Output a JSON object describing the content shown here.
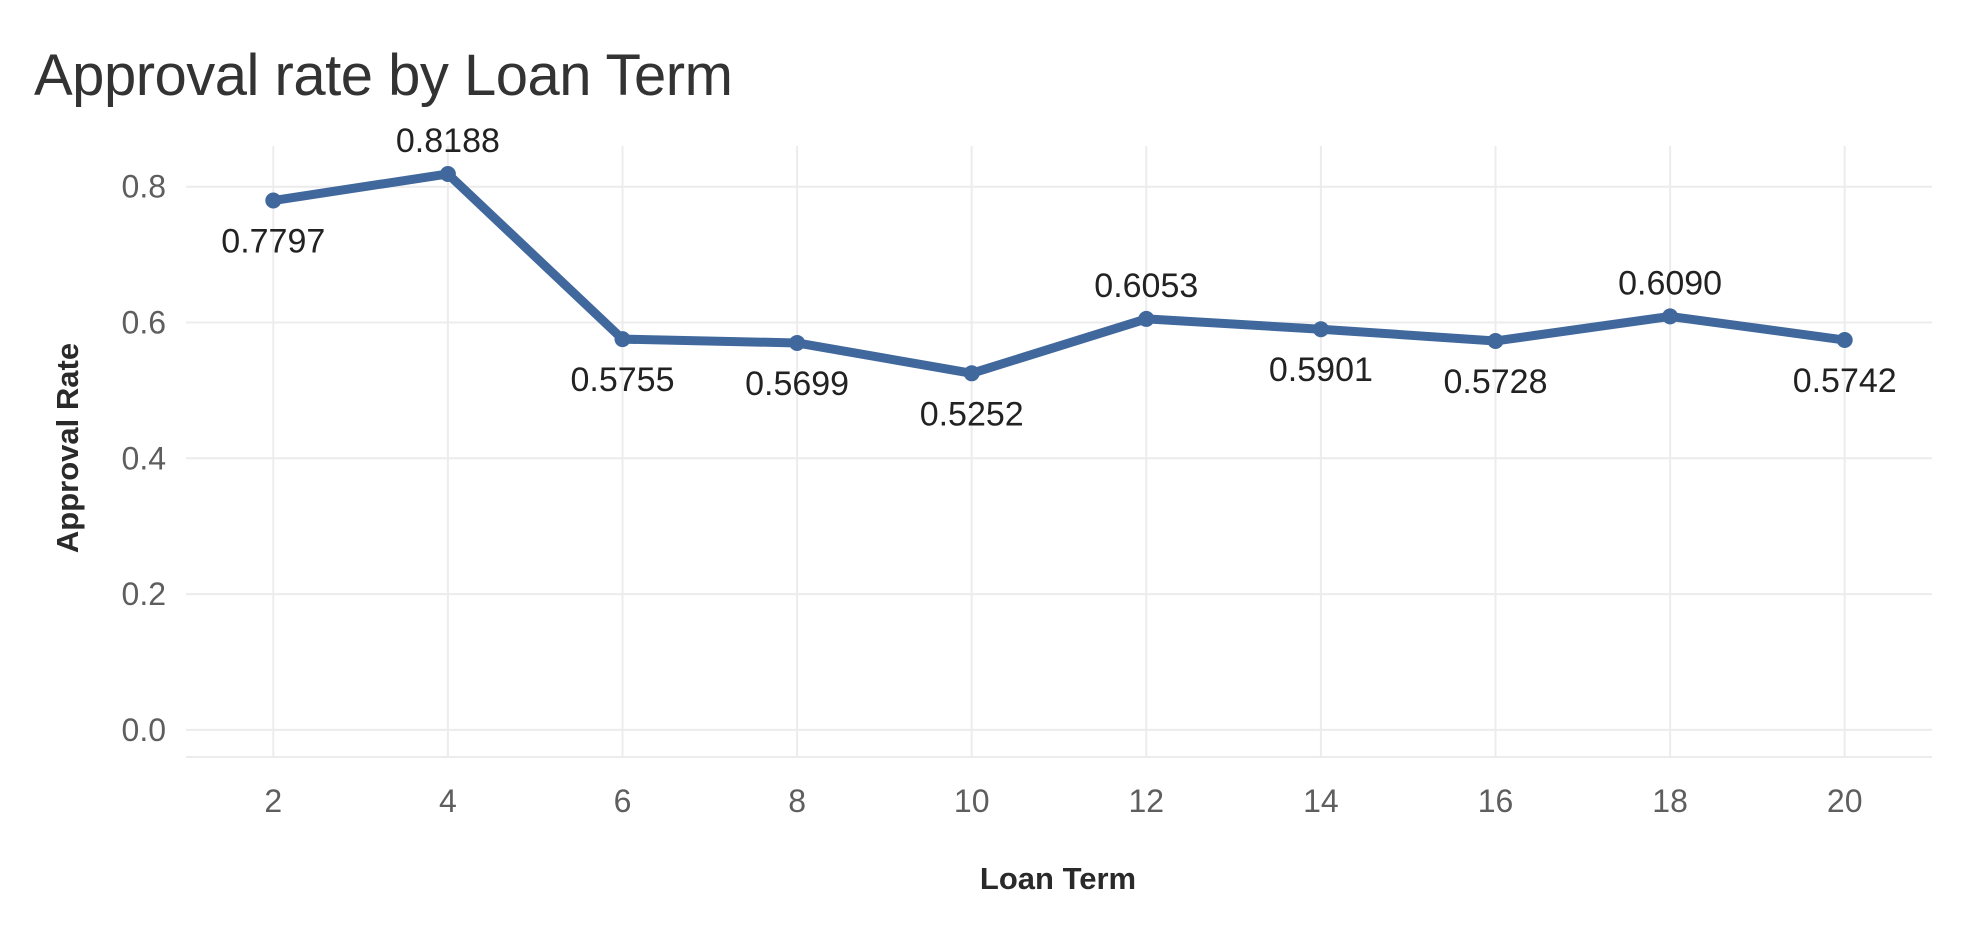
{
  "chart_data": {
    "type": "line",
    "title": "Approval rate by Loan Term",
    "xlabel": "Loan Term",
    "ylabel": "Approval Rate",
    "x": [
      2,
      4,
      6,
      8,
      10,
      12,
      14,
      16,
      18,
      20
    ],
    "series": [
      {
        "values": [
          0.7797,
          0.8188,
          0.5755,
          0.5699,
          0.5252,
          0.6053,
          0.5901,
          0.5728,
          0.609,
          0.5742
        ],
        "labels": [
          "0.7797",
          "0.8188",
          "0.5755",
          "0.5699",
          "0.5252",
          "0.6053",
          "0.5901",
          "0.5728",
          "0.6090",
          "0.5742"
        ],
        "color": "#41689c"
      }
    ],
    "x_ticks": [
      "2",
      "4",
      "6",
      "8",
      "10",
      "12",
      "14",
      "16",
      "18",
      "20"
    ],
    "y_ticks": [
      "0.0",
      "0.2",
      "0.4",
      "0.6",
      "0.8"
    ],
    "ylim": [
      -0.04,
      0.86
    ],
    "xlim": [
      1,
      21
    ],
    "grid": true,
    "legend": "none"
  }
}
